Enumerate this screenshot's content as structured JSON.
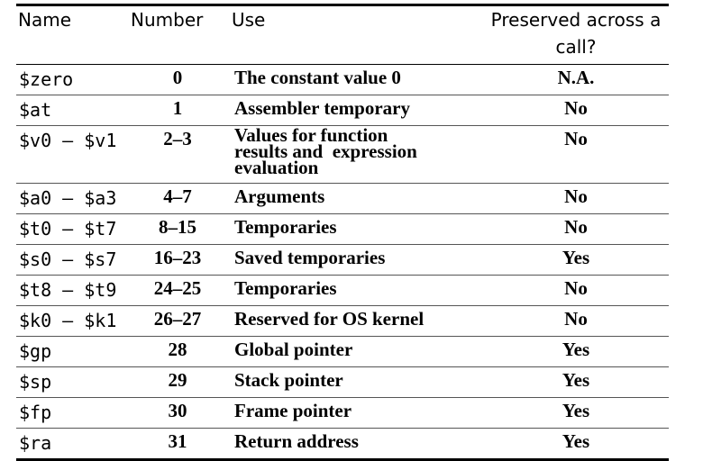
{
  "headers": {
    "name": "Name",
    "number": "Number",
    "use": "Use",
    "preserved_line1": "Preserved across a",
    "preserved_line2": "call?"
  },
  "rows": [
    {
      "name": "$zero",
      "number": "0",
      "use": "The constant value 0",
      "preserved": "N.A."
    },
    {
      "name": "$at",
      "number": "1",
      "use": "Assembler temporary",
      "preserved": "No"
    },
    {
      "name": "$v0 – $v1",
      "number": "2–3",
      "use_lines": [
        "Values for function",
        "results and  expression",
        "evaluation"
      ],
      "preserved": "No"
    },
    {
      "name": "$a0 – $a3",
      "number": "4–7",
      "use": "Arguments",
      "preserved": "No"
    },
    {
      "name": "$t0 – $t7",
      "number": "8–15",
      "use": "Temporaries",
      "preserved": "No"
    },
    {
      "name": "$s0 – $s7",
      "number": "16–23",
      "use": "Saved temporaries",
      "preserved": "Yes"
    },
    {
      "name": "$t8 – $t9",
      "number": "24–25",
      "use": "Temporaries",
      "preserved": "No"
    },
    {
      "name": "$k0 – $k1",
      "number": "26–27",
      "use": "Reserved for OS kernel",
      "preserved": "No"
    },
    {
      "name": "$gp",
      "number": "28",
      "use": "Global pointer",
      "preserved": "Yes"
    },
    {
      "name": "$sp",
      "number": "29",
      "use": "Stack pointer",
      "preserved": "Yes"
    },
    {
      "name": "$fp",
      "number": "30",
      "use": "Frame pointer",
      "preserved": "Yes"
    },
    {
      "name": "$ra",
      "number": "31",
      "use": "Return address",
      "preserved": "Yes"
    }
  ]
}
